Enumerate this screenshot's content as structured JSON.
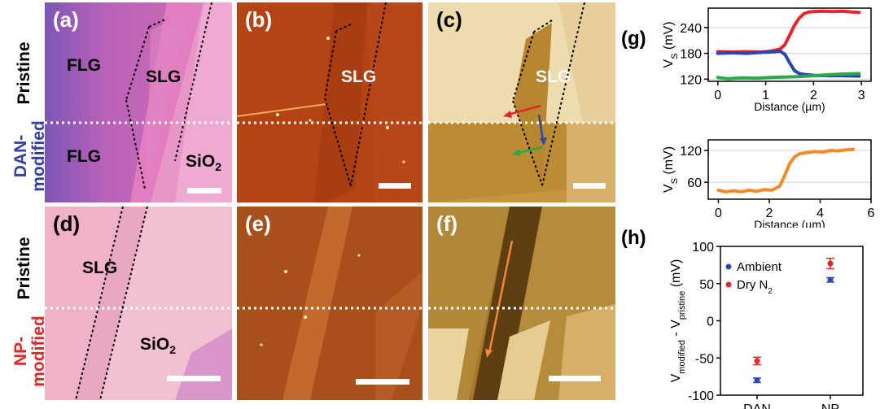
{
  "row_labels": {
    "top_pristine": "Pristine",
    "top_modified_line1": "DAN-",
    "top_modified_line2": "modified",
    "bottom_pristine": "Pristine",
    "bottom_modified_line1": "NP-",
    "bottom_modified_line2": "modified"
  },
  "panels": {
    "a": {
      "label": "(a)",
      "regions": [
        "FLG",
        "SLG",
        "FLG",
        "SiO",
        "2"
      ]
    },
    "b": {
      "label": "(b)",
      "regions": [
        "SLG"
      ]
    },
    "c": {
      "label": "(c)",
      "regions": [
        "SLG"
      ]
    },
    "d": {
      "label": "(d)",
      "regions": [
        "SLG",
        "SiO",
        "2"
      ]
    },
    "e": {
      "label": "(e)"
    },
    "f": {
      "label": "(f)"
    }
  },
  "colors": {
    "pristine_label": "#000000",
    "dan_label": "#3340a0",
    "np_label": "#e0252b",
    "red_series": "#e8232a",
    "blue_series": "#2c46b0",
    "green_series": "#2aa94a",
    "orange_series": "#f08a2a"
  },
  "chart_data": [
    {
      "panel": "(g)",
      "type": "line",
      "xlabel": "Distance (µm)",
      "ylabel": "V",
      "ylabel_sub": "S",
      "ylabel_unit": " (mV)",
      "xlim": [
        -0.2,
        3.2
      ],
      "ylim": [
        115,
        285
      ],
      "xticks": [
        0,
        1,
        2,
        3
      ],
      "yticks": [
        120,
        180,
        240
      ],
      "grid": true,
      "series": [
        {
          "color": "#e8232a",
          "x": [
            0,
            0.3,
            0.6,
            0.9,
            1.1,
            1.3,
            1.4,
            1.5,
            1.6,
            1.7,
            1.8,
            1.9,
            2.0,
            2.2,
            2.4,
            2.6,
            2.8,
            2.95
          ],
          "y": [
            184,
            183,
            184,
            183,
            185,
            190,
            200,
            222,
            245,
            262,
            272,
            276,
            277,
            278,
            277,
            278,
            276,
            275
          ]
        },
        {
          "color": "#2c46b0",
          "x": [
            0,
            0.3,
            0.6,
            0.9,
            1.1,
            1.3,
            1.4,
            1.5,
            1.6,
            1.7,
            1.8,
            2.0,
            2.3,
            2.6,
            2.95
          ],
          "y": [
            180,
            181,
            180,
            182,
            183,
            185,
            178,
            158,
            140,
            133,
            131,
            129,
            128,
            128,
            127
          ]
        },
        {
          "color": "#2aa94a",
          "x": [
            0,
            0.2,
            0.5,
            0.8,
            1.1,
            1.4,
            1.7,
            2.0,
            2.3,
            2.6,
            2.95
          ],
          "y": [
            124,
            121,
            123,
            122,
            124,
            125,
            126,
            128,
            130,
            132,
            133
          ]
        }
      ]
    },
    {
      "panel": "",
      "type": "line",
      "xlabel": "Distance (µm)",
      "ylabel": "V",
      "ylabel_sub": "S",
      "ylabel_unit": " (mV)",
      "xlim": [
        -0.4,
        6
      ],
      "ylim": [
        28,
        140
      ],
      "xticks": [
        0,
        2,
        4,
        6
      ],
      "yticks": [
        60,
        120
      ],
      "grid": true,
      "series": [
        {
          "color": "#f08a2a",
          "x": [
            0,
            0.3,
            0.6,
            0.9,
            1.2,
            1.5,
            1.8,
            2.1,
            2.4,
            2.6,
            2.8,
            3.0,
            3.2,
            3.5,
            3.8,
            4.1,
            4.4,
            4.7,
            5.0,
            5.3
          ],
          "y": [
            45,
            42,
            44,
            42,
            45,
            43,
            46,
            45,
            52,
            72,
            95,
            108,
            114,
            116,
            118,
            117,
            120,
            119,
            121,
            122
          ]
        }
      ]
    },
    {
      "panel": "(h)",
      "type": "scatter",
      "ylabel_main": "V",
      "ylabel_sub1": "modified",
      "ylabel_mid": " - V",
      "ylabel_sub2": "pristine",
      "ylabel_unit": " (mV)",
      "categories": [
        "DAN",
        "NP"
      ],
      "ylim": [
        -100,
        100
      ],
      "yticks": [
        -100,
        -50,
        0,
        50,
        100
      ],
      "legend_position": "top-left",
      "series": [
        {
          "name": "Ambient",
          "color": "#2c46b0",
          "values": [
            -80,
            55
          ],
          "errors": [
            3,
            3
          ]
        },
        {
          "name": "Dry N",
          "name_sub": "2",
          "color": "#e8232a",
          "values": [
            -54,
            77
          ],
          "errors": [
            5,
            7
          ]
        }
      ]
    }
  ]
}
